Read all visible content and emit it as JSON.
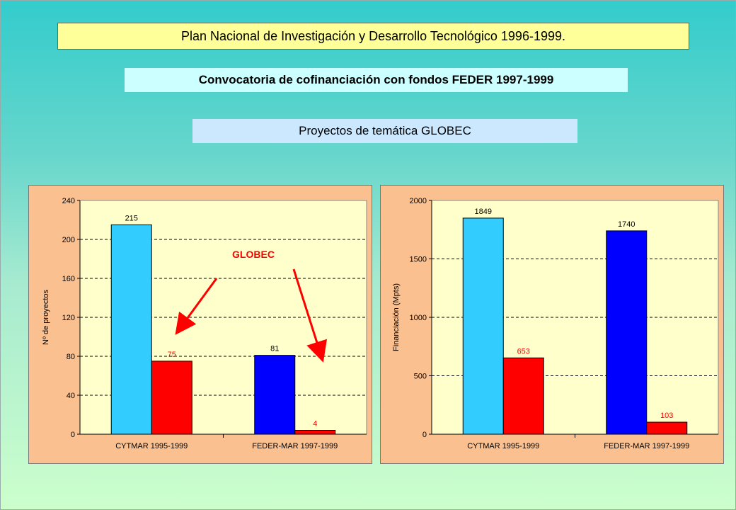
{
  "header": {
    "title": "Plan Nacional de Investigación y Desarrollo Tecnológico 1996-1999.",
    "subtitle": "Convocatoria de cofinanciación con fondos FEDER 1997-1999",
    "section": "Proyectos de temática GLOBEC"
  },
  "colors": {
    "cytmar_total": "#33ccff",
    "feder_total": "#0000ff",
    "globec": "#ff0000",
    "plot_bg": "#ffffcc",
    "panel_bg": "#fac090",
    "arrow": "#ff0000"
  },
  "chart_data": [
    {
      "type": "bar",
      "categories": [
        "CYTMAR 1995-1999",
        "FEDER-MAR 1997-1999"
      ],
      "series": [
        {
          "values": [
            215,
            81
          ]
        },
        {
          "values": [
            75,
            4
          ]
        }
      ],
      "data_labels": [
        [
          "215",
          "81"
        ],
        [
          "75",
          "4"
        ]
      ],
      "ylabel": "Nº de proyectos",
      "ylim": [
        0,
        240
      ],
      "yticks": [
        0,
        40,
        80,
        120,
        160,
        200,
        240
      ],
      "grid": true,
      "annotation": {
        "text": "GLOBEC",
        "arrows_to": "second series bars"
      }
    },
    {
      "type": "bar",
      "categories": [
        "CYTMAR 1995-1999",
        "FEDER-MAR 1997-1999"
      ],
      "series": [
        {
          "values": [
            1849,
            1740
          ]
        },
        {
          "values": [
            653,
            103
          ]
        }
      ],
      "data_labels": [
        [
          "1849",
          "1740"
        ],
        [
          "653",
          "103"
        ]
      ],
      "ylabel": "Financiación (Mpts)",
      "ylim": [
        0,
        2000
      ],
      "yticks": [
        0,
        500,
        1000,
        1500,
        2000
      ],
      "grid": true
    }
  ]
}
